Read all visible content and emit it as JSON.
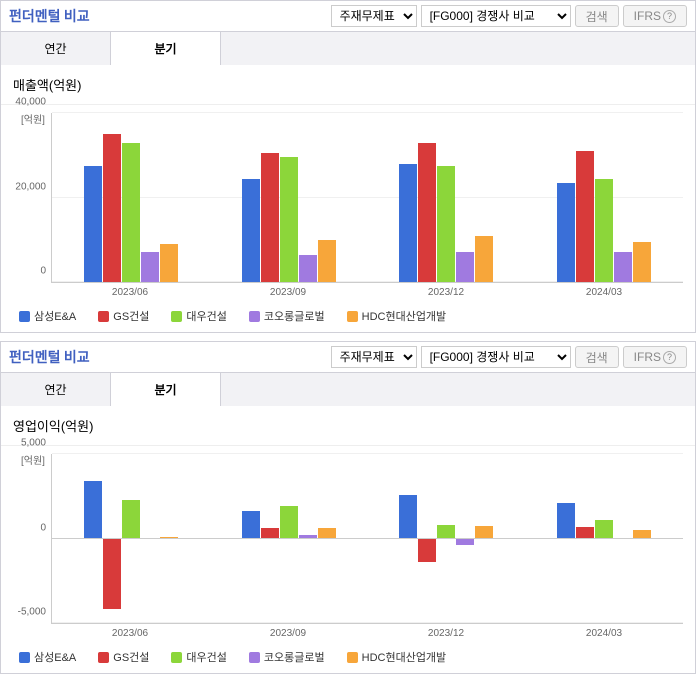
{
  "section_title": "펀더멘털",
  "section_sub": "비교",
  "dropdown1": "주재무제표",
  "dropdown2": "[FG000] 경쟁사 비교",
  "btn_search": "검색",
  "btn_ifrs": "IFRS",
  "tab_annual": "연간",
  "tab_quarter": "분기",
  "axis_unit": "[억원]",
  "charts": [
    {
      "title": "매출액(억원)",
      "type": "bar",
      "ylim": [
        0,
        40000
      ],
      "yticks": [
        0,
        20000,
        40000
      ],
      "ytick_labels": [
        "0",
        "20,000",
        "40,000"
      ],
      "categories": [
        "2023/06",
        "2023/09",
        "2023/12",
        "2024/03"
      ],
      "series_colors": [
        "#3a6fd8",
        "#d83a3a",
        "#8cd63a",
        "#a07ae0",
        "#f7a63a"
      ],
      "series_labels": [
        "삼성E&A",
        "GS건설",
        "대우건설",
        "코오롱글로벌",
        "HDC현대산업개발"
      ],
      "values": [
        [
          27500,
          35000,
          33000,
          7000,
          9000
        ],
        [
          24500,
          30500,
          29500,
          6500,
          10000
        ],
        [
          28000,
          33000,
          27500,
          7000,
          11000
        ],
        [
          23500,
          31000,
          24500,
          7000,
          9500
        ]
      ]
    },
    {
      "title": "영업이익(억원)",
      "type": "bar",
      "ylim": [
        -5000,
        5000
      ],
      "yticks": [
        -5000,
        0,
        5000
      ],
      "ytick_labels": [
        "-5,000",
        "0",
        "5,000"
      ],
      "categories": [
        "2023/06",
        "2023/09",
        "2023/12",
        "2024/03"
      ],
      "series_colors": [
        "#3a6fd8",
        "#d83a3a",
        "#8cd63a",
        "#a07ae0",
        "#f7a63a"
      ],
      "series_labels": [
        "삼성E&A",
        "GS건설",
        "대우건설",
        "코오롱글로벌",
        "HDC현대산업개발"
      ],
      "values": [
        [
          3400,
          -4200,
          2300,
          50,
          100
        ],
        [
          1600,
          600,
          1900,
          200,
          650
        ],
        [
          2600,
          -1400,
          800,
          -400,
          750
        ],
        [
          2100,
          700,
          1100,
          50,
          500
        ]
      ]
    }
  ]
}
